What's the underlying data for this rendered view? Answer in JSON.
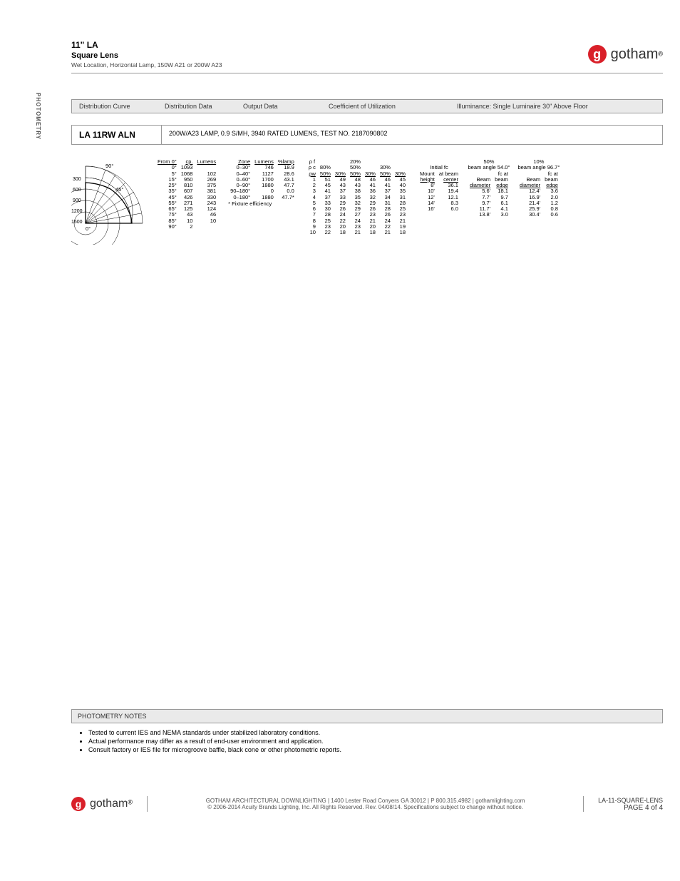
{
  "header": {
    "title1": "11\" LA",
    "title2": "Square Lens",
    "subtitle": "Wet Location, Horizontal Lamp, 150W A21 or 200W A23",
    "brand": "gotham"
  },
  "side_tab": "PHOTOMETRY",
  "columns_bar": [
    "Distribution Curve",
    "Distribution Data",
    "Output Data",
    "Coefficient of Utilization",
    "Illuminance: Single Luminaire 30\" Above Floor"
  ],
  "model": {
    "label": "LA 11RW ALN",
    "desc": "200W/A23 LAMP, 0.9 S/MH, 3940 RATED LUMENS, TEST NO. 2187090802"
  },
  "polar": {
    "radii_labels": [
      "300",
      "600",
      "900",
      "1200",
      "1500"
    ],
    "angle_labels": {
      "zero": "0°",
      "mid": "45°",
      "ninety": "90°"
    }
  },
  "dist_data": {
    "header": [
      "From 0°",
      "cp.",
      "Lumens"
    ],
    "rows": [
      [
        "0°",
        "1093",
        ""
      ],
      [
        "5°",
        "1068",
        "102"
      ],
      [
        "15°",
        "950",
        "269"
      ],
      [
        "25°",
        "810",
        "375"
      ],
      [
        "35°",
        "607",
        "381"
      ],
      [
        "45°",
        "426",
        "330"
      ],
      [
        "55°",
        "271",
        "243"
      ],
      [
        "65°",
        "125",
        "124"
      ],
      [
        "75°",
        "43",
        "46"
      ],
      [
        "85°",
        "10",
        "10"
      ],
      [
        "90°",
        "2",
        ""
      ]
    ]
  },
  "output_data": {
    "header": [
      "Zone",
      "Lumens",
      "%lamp"
    ],
    "rows": [
      [
        "0–30°",
        "746",
        "18.9"
      ],
      [
        "0–40°",
        "1127",
        "28.6"
      ],
      [
        "0–60°",
        "1700",
        "43.1"
      ],
      [
        "0–90°",
        "1880",
        "47.7"
      ],
      [
        "90–180°",
        "0",
        "0.0"
      ],
      [
        "0–180°",
        "1880",
        "47.7*"
      ]
    ],
    "footnote": "*  Fixture  efficiency"
  },
  "cu": {
    "top_labels": {
      "pf": "ρ f",
      "pc": "ρ c",
      "pw": "ρw"
    },
    "group_pf": [
      "",
      "20%",
      ""
    ],
    "group_pc": [
      "80%",
      "50%",
      "30%"
    ],
    "group_pw_header": [
      "50%",
      "30%",
      "50%",
      "30%",
      "50%",
      "30%"
    ],
    "rows": [
      [
        "1",
        "51",
        "49",
        "48",
        "46",
        "46",
        "45"
      ],
      [
        "2",
        "45",
        "43",
        "43",
        "41",
        "41",
        "40"
      ],
      [
        "3",
        "41",
        "37",
        "38",
        "36",
        "37",
        "35"
      ],
      [
        "4",
        "37",
        "33",
        "35",
        "32",
        "34",
        "31"
      ],
      [
        "5",
        "33",
        "29",
        "32",
        "29",
        "31",
        "28"
      ],
      [
        "6",
        "30",
        "26",
        "29",
        "26",
        "28",
        "25"
      ],
      [
        "7",
        "28",
        "24",
        "27",
        "23",
        "26",
        "23"
      ],
      [
        "8",
        "25",
        "22",
        "24",
        "21",
        "24",
        "21"
      ],
      [
        "9",
        "23",
        "20",
        "23",
        "20",
        "22",
        "19"
      ],
      [
        "10",
        "22",
        "18",
        "21",
        "18",
        "21",
        "18"
      ]
    ]
  },
  "illum": {
    "shared_header": [
      "Mount",
      "Initial fc"
    ],
    "shared_sub": [
      "height",
      "at beam",
      "center"
    ],
    "mount_rows": [
      [
        "8'",
        "36.1"
      ],
      [
        "10'",
        "19.4"
      ],
      [
        "12'",
        "12.1"
      ],
      [
        "14'",
        "8.3"
      ],
      [
        "16'",
        "6.0"
      ]
    ],
    "fifty": {
      "title": "50%",
      "angle": "beam angle 54.0°",
      "header": [
        "Beam",
        "fc at",
        "beam"
      ],
      "sub": [
        "diameter",
        "edge"
      ],
      "rows": [
        [
          "5.6'",
          "18.1"
        ],
        [
          "7.7'",
          "9.7"
        ],
        [
          "9.7'",
          "6.1"
        ],
        [
          "11.7'",
          "4.1"
        ],
        [
          "13.8'",
          "3.0"
        ]
      ]
    },
    "ten": {
      "title": "10%",
      "angle": "beam angle 96.7°",
      "header": [
        "Beam",
        "fc at",
        "beam"
      ],
      "sub": [
        "diameter",
        "edge"
      ],
      "rows": [
        [
          "12.4'",
          "3.6"
        ],
        [
          "16.9'",
          "2.0"
        ],
        [
          "21.4'",
          "1.2"
        ],
        [
          "25.9'",
          "0.8"
        ],
        [
          "30.4'",
          "0.6"
        ]
      ]
    }
  },
  "notes": {
    "heading": "PHOTOMETRY NOTES",
    "items": [
      "Tested to current IES and NEMA standards under stabilized laboratory conditions.",
      "Actual performance may differ as a result of end-user environment and application.",
      "Consult factory or IES file for microgroove baffle, black cone or other photometric reports."
    ]
  },
  "footer": {
    "center1": "GOTHAM ARCHITECTURAL DOWNLIGHTING  |  1400 Lester Road Conyers GA 30012  |  P 800.315.4982  |  gothamlighting.com",
    "center2": "© 2006-2014 Acuity Brands Lighting, Inc. All Rights Reserved. Rev. 04/08/14. Specifications subject to change without notice.",
    "right1": "LA-11-SQUARE-LENS",
    "right2": "PAGE 4 of 4"
  },
  "colors": {
    "accent": "#d92029",
    "gray_bg": "#eaeaea",
    "border": "#999999",
    "text": "#000000"
  }
}
